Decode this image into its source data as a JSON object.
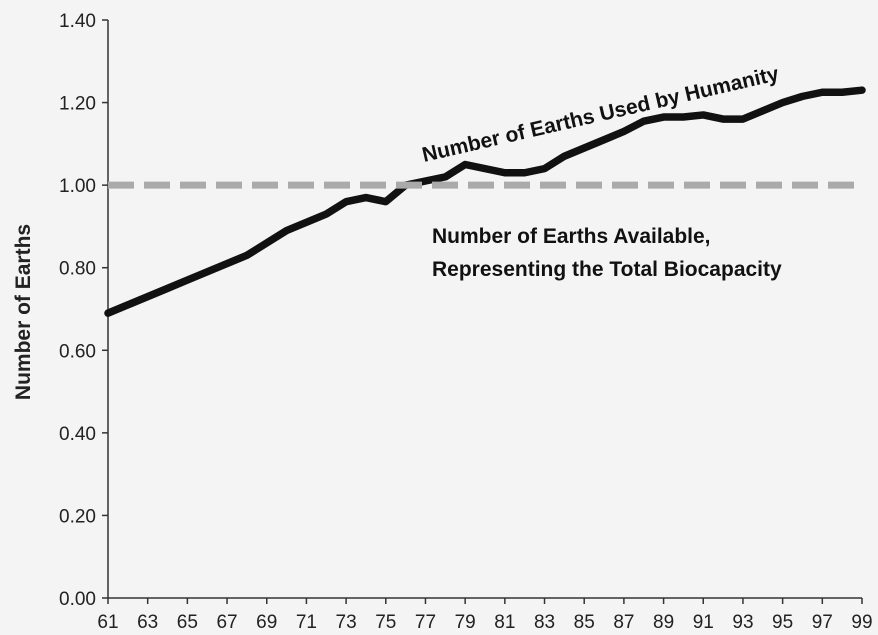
{
  "chart_data": {
    "type": "line",
    "title": "",
    "xlabel": "",
    "ylabel": "Number of Earths",
    "xlim": [
      61,
      99
    ],
    "ylim": [
      0,
      1.4
    ],
    "grid": false,
    "y_ticks": [
      "0.00",
      "0.20",
      "0.40",
      "0.60",
      "0.80",
      "1.00",
      "1.20",
      "1.40"
    ],
    "x_ticks": [
      "61",
      "63",
      "65",
      "67",
      "69",
      "71",
      "73",
      "75",
      "77",
      "79",
      "81",
      "83",
      "85",
      "87",
      "89",
      "91",
      "93",
      "95",
      "97",
      "99"
    ],
    "series": [
      {
        "name": "Number of Earths Used by Humanity",
        "style": "solid",
        "color": "#111111",
        "x": [
          61,
          62,
          63,
          64,
          65,
          66,
          67,
          68,
          69,
          70,
          71,
          72,
          73,
          74,
          75,
          76,
          77,
          78,
          79,
          80,
          81,
          82,
          83,
          84,
          85,
          86,
          87,
          88,
          89,
          90,
          91,
          92,
          93,
          94,
          95,
          96,
          97,
          98,
          99
        ],
        "y": [
          0.69,
          0.71,
          0.73,
          0.75,
          0.77,
          0.79,
          0.81,
          0.83,
          0.86,
          0.89,
          0.91,
          0.93,
          0.96,
          0.97,
          0.96,
          1.0,
          1.01,
          1.02,
          1.05,
          1.04,
          1.03,
          1.03,
          1.04,
          1.07,
          1.09,
          1.11,
          1.13,
          1.155,
          1.165,
          1.165,
          1.17,
          1.16,
          1.16,
          1.18,
          1.2,
          1.215,
          1.225,
          1.225,
          1.23
        ]
      },
      {
        "name": "Number of Earths Available, Representing the Total Biocapacity",
        "style": "dashed",
        "color": "#aaaaaa",
        "x": [
          61,
          99
        ],
        "y": [
          1.0,
          1.0
        ]
      }
    ],
    "annotations": [
      "Number of Earths Used by Humanity",
      "Number of Earths Available,",
      "Representing the Total Biocapacity"
    ]
  }
}
